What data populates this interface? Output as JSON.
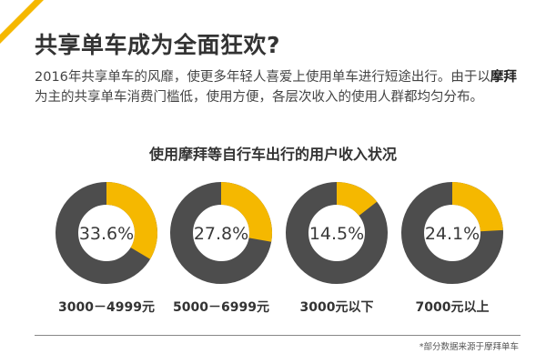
{
  "page": {
    "title": "共享单车成为全面狂欢?",
    "desc_1": "2016年共享单车的风靡，使更多年轻人喜爱上使用单车进行短途出行。由于以",
    "desc_bold": "摩拜",
    "desc_2": "为主的共享单车消费门槛低，使用方便，各层次收入的使用人群都均匀分布。",
    "footnote": "*部分数据来源于摩拜单车"
  },
  "colors": {
    "accent": "#F5B800",
    "ring": "#4D4D4D",
    "corner_stripe": "#F5B800"
  },
  "chart_data": {
    "type": "pie",
    "title": "使用摩拜等自行车出行的用户收入状况",
    "categories": [
      "3000－4999元",
      "5000－6999元",
      "3000元以下",
      "7000元以上"
    ],
    "values": [
      33.6,
      27.8,
      14.5,
      24.1
    ],
    "labels": [
      "33.6%",
      "27.8%",
      "14.5%",
      "24.1%"
    ],
    "unit": "%"
  }
}
